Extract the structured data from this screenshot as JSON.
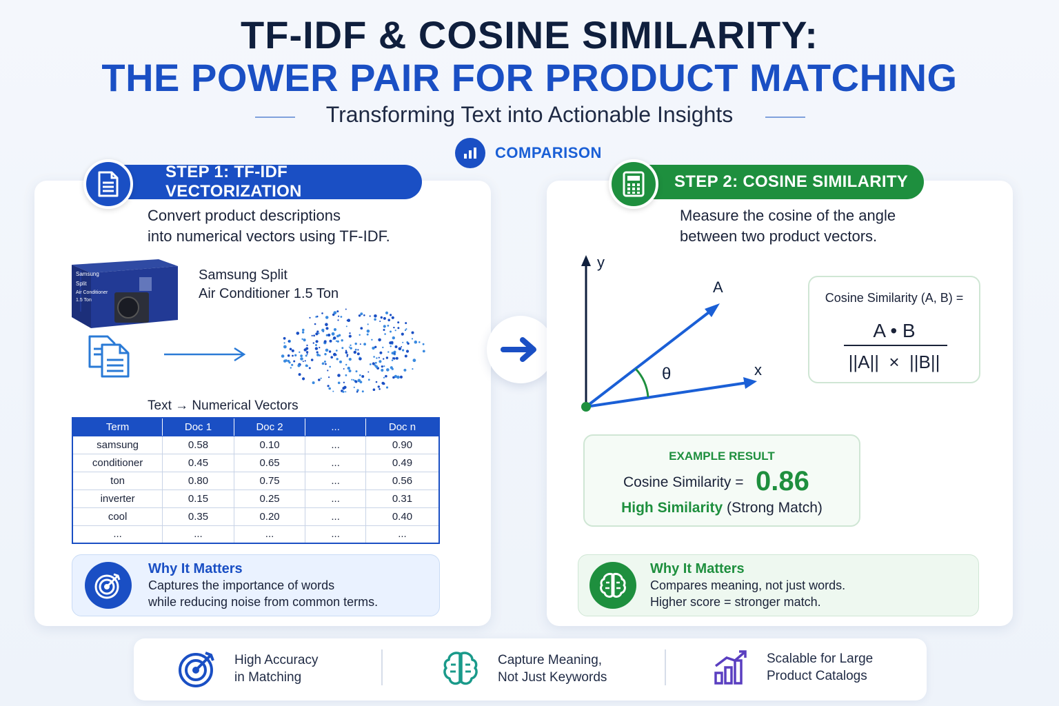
{
  "header": {
    "title_line1": "TF-IDF & COSINE SIMILARITY:",
    "title_line2": "THE POWER PAIR FOR PRODUCT MATCHING",
    "subtitle": "Transforming Text into Actionable Insights",
    "comparison_label": "COMPARISON"
  },
  "step1": {
    "label": "STEP 1: TF-IDF VECTORIZATION",
    "desc_line1": "Convert product descriptions",
    "desc_line2": "into numerical vectors using TF-IDF.",
    "product_line1": "Samsung Split",
    "product_line2": "Air Conditioner 1.5 Ton",
    "box_brand": "Samsung",
    "box_line1": "Split",
    "box_line2": "Air Conditioner",
    "box_line3": "1.5 Ton",
    "flow_caption": "Text → Numerical Vectors",
    "table": {
      "headers": [
        "Term",
        "Doc 1",
        "Doc 2",
        "...",
        "Doc n"
      ],
      "rows": [
        [
          "samsung",
          "0.58",
          "0.10",
          "...",
          "0.90"
        ],
        [
          "conditioner",
          "0.45",
          "0.65",
          "...",
          "0.49"
        ],
        [
          "ton",
          "0.80",
          "0.75",
          "...",
          "0.56"
        ],
        [
          "inverter",
          "0.15",
          "0.25",
          "...",
          "0.31"
        ],
        [
          "cool",
          "0.35",
          "0.20",
          "...",
          "0.40"
        ],
        [
          "...",
          "...",
          "...",
          "...",
          "..."
        ]
      ]
    },
    "why_title": "Why It Matters",
    "why_line1": "Captures the importance of words",
    "why_line2": "while reducing noise from common terms."
  },
  "step2": {
    "label": "STEP 2: COSINE SIMILARITY",
    "desc_line1": "Measure the cosine of the angle",
    "desc_line2": "between two product vectors.",
    "axis_y": "y",
    "axis_x": "x",
    "vector_a": "A",
    "angle": "θ",
    "formula_label": "Cosine Similarity (A, B) =",
    "formula_numerator": "A • B",
    "formula_denominator": "||A||  ×  ||B||",
    "example_title": "EXAMPLE RESULT",
    "example_label": "Cosine Similarity =",
    "example_value": "0.86",
    "example_strong": "High Similarity",
    "example_note": "(Strong Match)",
    "why_title": "Why It Matters",
    "why_line1": "Compares meaning, not just words.",
    "why_line2": "Higher score = stronger match."
  },
  "footer": {
    "item1_line1": "High Accuracy",
    "item1_line2": "in Matching",
    "item2_line1": "Capture Meaning,",
    "item2_line2": "Not Just Keywords",
    "item3_line1": "Scalable for Large",
    "item3_line2": "Product Catalogs"
  },
  "colors": {
    "blue": "#1a4fc4",
    "green": "#1e8f3e",
    "purple": "#5a3fc0",
    "teal": "#1a9a8a"
  },
  "icons": [
    "document-icon",
    "chart-icon",
    "calculator-icon",
    "target-icon",
    "brain-icon",
    "bar-chart-icon",
    "arrow-right-icon"
  ]
}
